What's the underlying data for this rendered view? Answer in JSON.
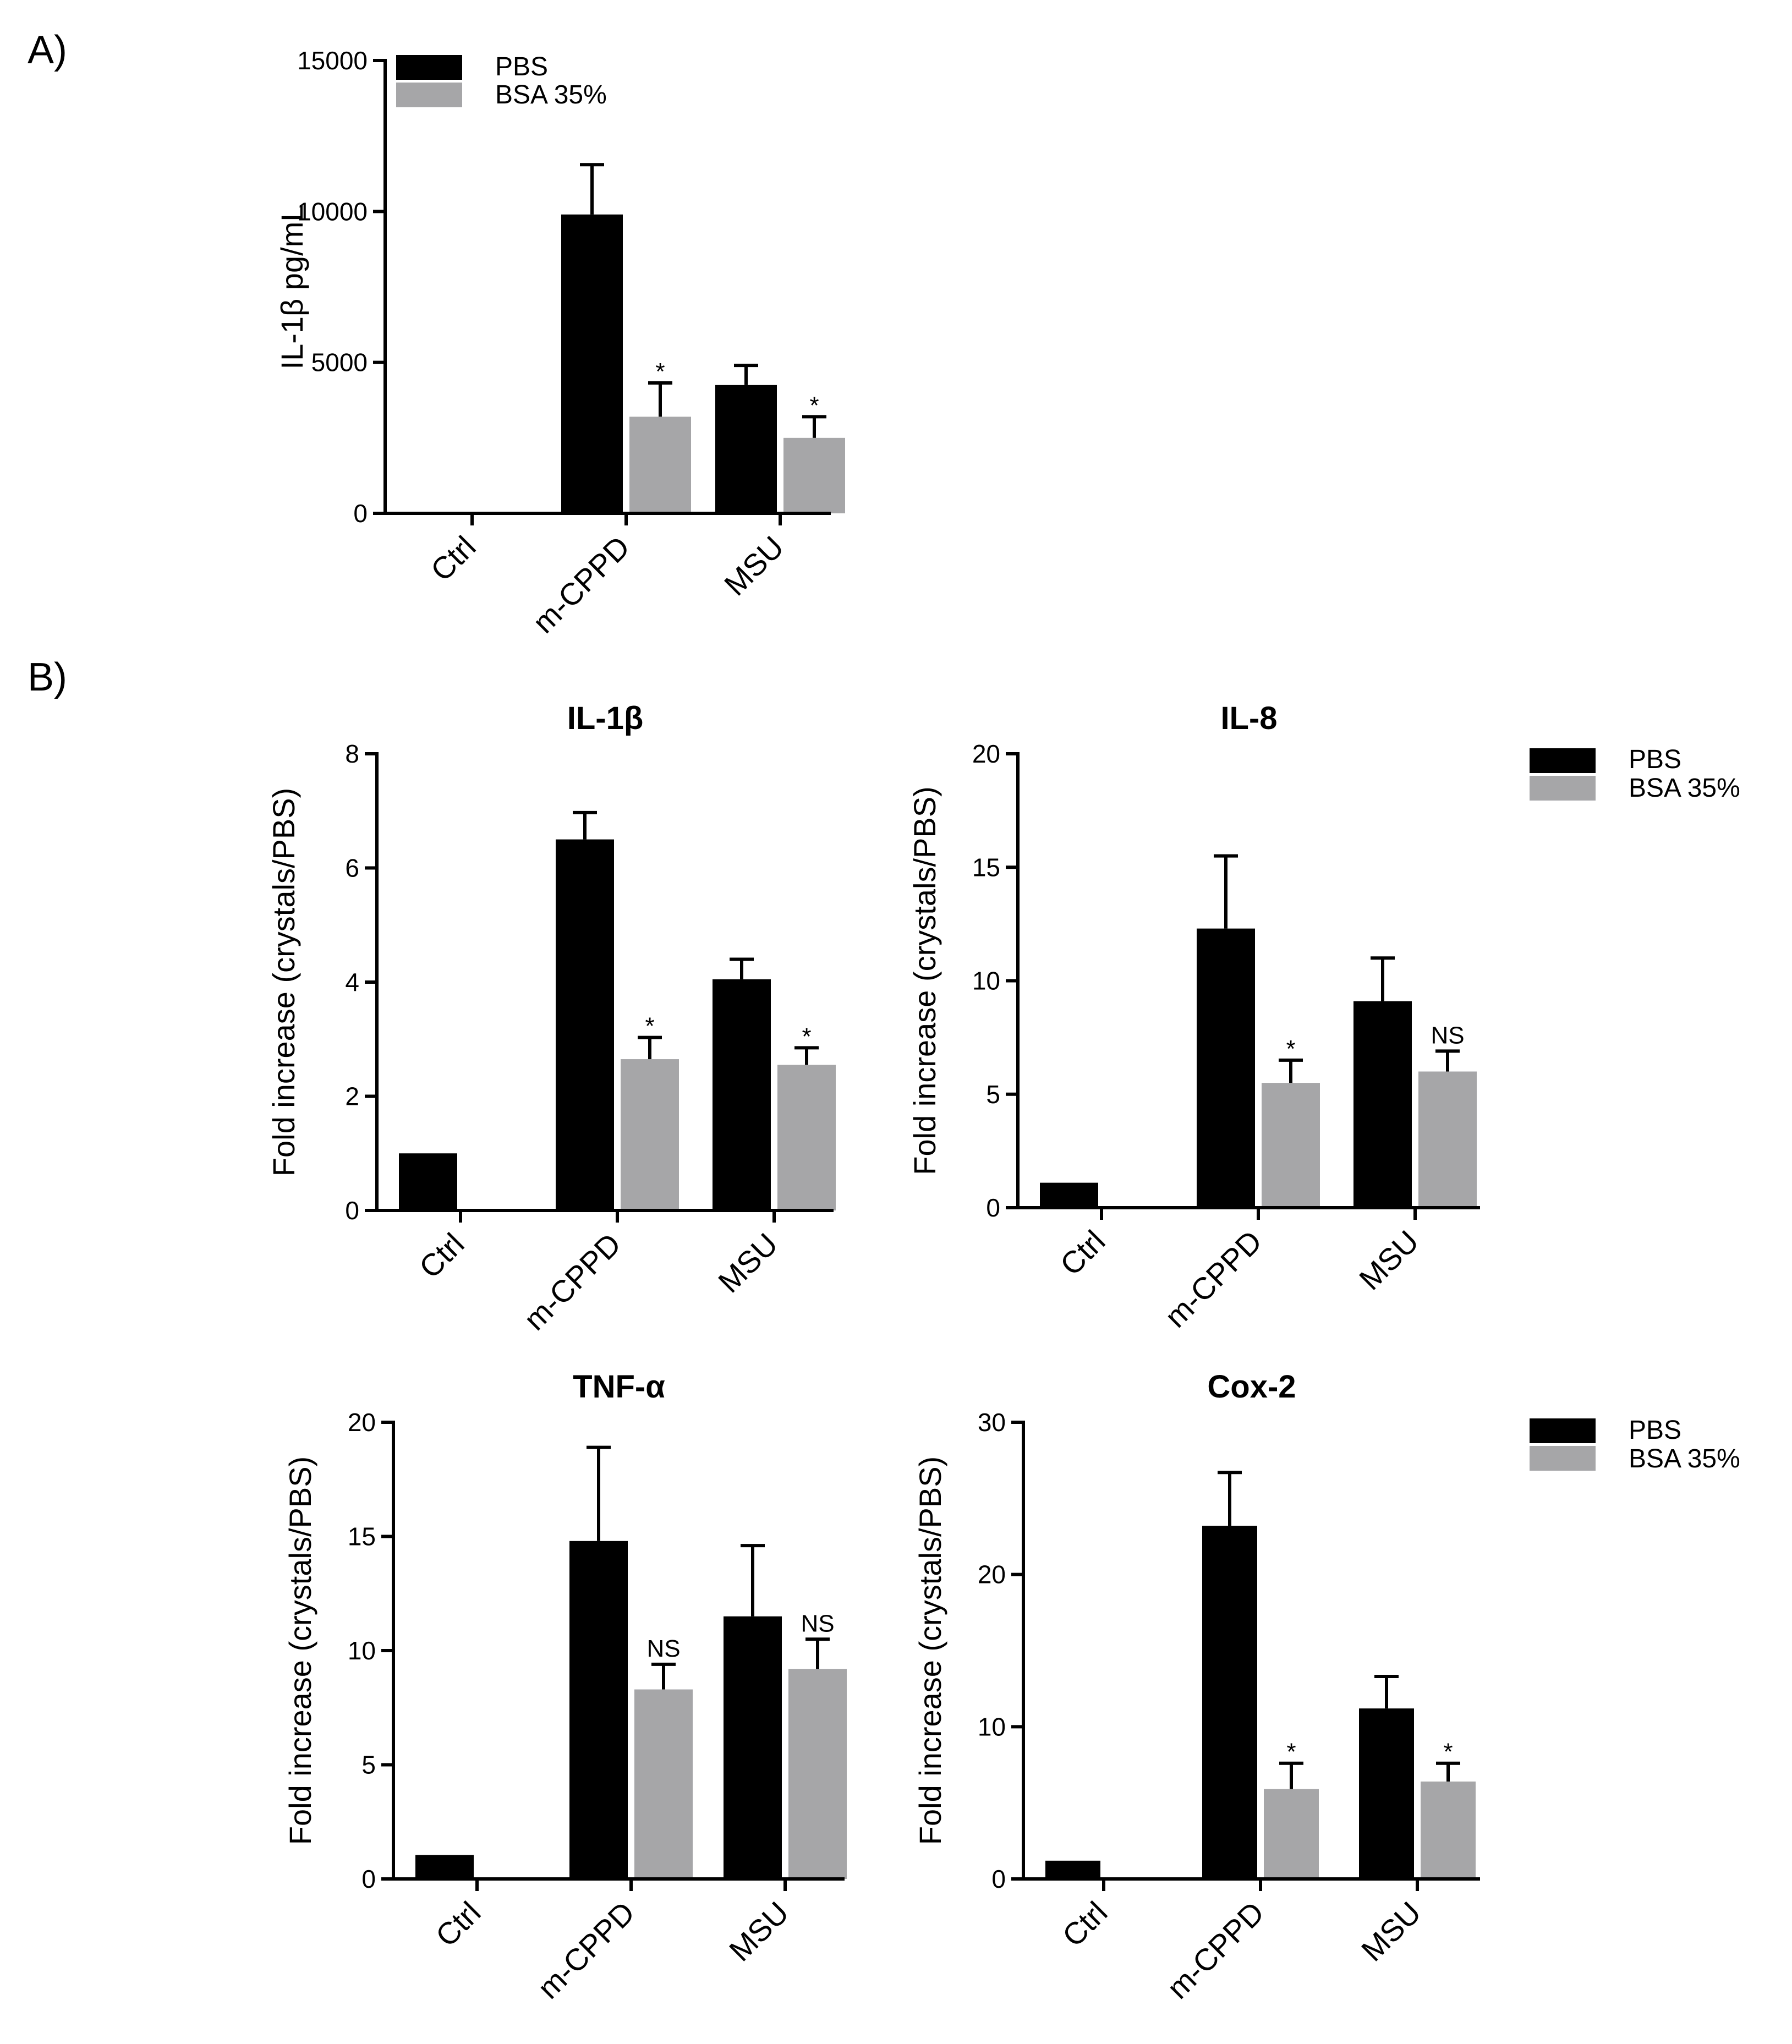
{
  "panels": {
    "a": "A)",
    "b": "B)"
  },
  "colors": {
    "pbs": "#000000",
    "bsa": "#a6a6a8",
    "axis": "#000000"
  },
  "legends": [
    {
      "pbs": "PBS",
      "bsa": "BSA 35%"
    },
    {
      "pbs": "PBS",
      "bsa": "BSA 35%"
    },
    {
      "pbs": "PBS",
      "bsa": "BSA 35%"
    }
  ],
  "chart_data": [
    {
      "id": "il1b-elisa",
      "type": "bar",
      "title": "",
      "xlabel": "",
      "ylabel": "IL-1β pg/mL",
      "categories": [
        "Ctrl",
        "m-CPPD",
        "MSU"
      ],
      "ylim": [
        0,
        15000
      ],
      "yticks": [
        0,
        5000,
        10000,
        15000
      ],
      "yticklabels": [
        "0",
        "5000",
        "10000",
        "15000"
      ],
      "series": [
        {
          "name": "PBS",
          "values": [
            0,
            9900,
            4250
          ],
          "errors": [
            0,
            1650,
            650
          ],
          "sig": [
            "",
            "",
            ""
          ]
        },
        {
          "name": "BSA 35%",
          "values": [
            0,
            3200,
            2500
          ],
          "errors": [
            0,
            1120,
            700
          ],
          "sig": [
            "",
            "*",
            "*"
          ]
        }
      ]
    },
    {
      "id": "il1b",
      "type": "bar",
      "title": "IL-1β",
      "xlabel": "",
      "ylabel": "Fold increase (crystals/PBS)",
      "categories": [
        "Ctrl",
        "m-CPPD",
        "MSU"
      ],
      "ylim": [
        0,
        8
      ],
      "yticks": [
        0,
        2,
        4,
        6,
        8
      ],
      "yticklabels": [
        "0",
        "2",
        "4",
        "6",
        "8"
      ],
      "series": [
        {
          "name": "PBS",
          "values": [
            1.0,
            6.5,
            4.05
          ],
          "errors": [
            0,
            0.47,
            0.35
          ],
          "sig": [
            "",
            "",
            ""
          ]
        },
        {
          "name": "BSA 35%",
          "values": [
            null,
            2.65,
            2.55
          ],
          "errors": [
            0,
            0.38,
            0.3
          ],
          "sig": [
            "",
            "*",
            "*"
          ]
        }
      ]
    },
    {
      "id": "il8",
      "type": "bar",
      "title": "IL-8",
      "xlabel": "",
      "ylabel": "Fold increase (crystals/PBS)",
      "categories": [
        "Ctrl",
        "m-CPPD",
        "MSU"
      ],
      "ylim": [
        0,
        20
      ],
      "yticks": [
        0,
        5,
        10,
        15,
        20
      ],
      "yticklabels": [
        "0",
        "5",
        "10",
        "15",
        "20"
      ],
      "series": [
        {
          "name": "PBS",
          "values": [
            1.1,
            12.3,
            9.1
          ],
          "errors": [
            0,
            3.2,
            1.9
          ],
          "sig": [
            "",
            "",
            ""
          ]
        },
        {
          "name": "BSA 35%",
          "values": [
            null,
            5.5,
            6.0
          ],
          "errors": [
            0,
            1.0,
            0.9
          ],
          "sig": [
            "",
            "*",
            "NS"
          ]
        }
      ]
    },
    {
      "id": "tnfa",
      "type": "bar",
      "title": "TNF-α",
      "xlabel": "",
      "ylabel": "Fold increase (crystals/PBS)",
      "categories": [
        "Ctrl",
        "m-CPPD",
        "MSU"
      ],
      "ylim": [
        0,
        20
      ],
      "yticks": [
        0,
        5,
        10,
        15,
        20
      ],
      "yticklabels": [
        "0",
        "5",
        "10",
        "15",
        "20"
      ],
      "series": [
        {
          "name": "PBS",
          "values": [
            1.05,
            14.8,
            11.5
          ],
          "errors": [
            0,
            4.1,
            3.1
          ],
          "sig": [
            "",
            "",
            ""
          ]
        },
        {
          "name": "BSA 35%",
          "values": [
            null,
            8.3,
            9.2
          ],
          "errors": [
            0,
            1.1,
            1.3
          ],
          "sig": [
            "",
            "NS",
            "NS"
          ]
        }
      ]
    },
    {
      "id": "cox2",
      "type": "bar",
      "title": "Cox-2",
      "xlabel": "",
      "ylabel": "Fold increase (crystals/PBS)",
      "categories": [
        "Ctrl",
        "m-CPPD",
        "MSU"
      ],
      "ylim": [
        0,
        30
      ],
      "yticks": [
        0,
        10,
        20,
        30
      ],
      "yticklabels": [
        "0",
        "10",
        "20",
        "30"
      ],
      "series": [
        {
          "name": "PBS",
          "values": [
            1.2,
            23.2,
            11.2
          ],
          "errors": [
            0,
            3.5,
            2.1
          ],
          "sig": [
            "",
            "",
            ""
          ]
        },
        {
          "name": "BSA 35%",
          "values": [
            null,
            5.9,
            6.4
          ],
          "errors": [
            0,
            1.7,
            1.2
          ],
          "sig": [
            "",
            "*",
            "*"
          ]
        }
      ]
    }
  ]
}
